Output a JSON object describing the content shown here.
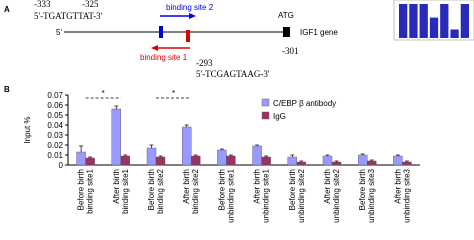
{
  "panel_a": {
    "label": "A",
    "left_pos_1": "-333",
    "left_pos_2": "-325",
    "left_seq": "5'-TGATGTTAT-3'",
    "site2_label": "binding site 2",
    "start_codon": "ATG",
    "five_prime": "5'",
    "gene_label": "IGF1 gene",
    "site1_label": "binding site 1",
    "right_pos_1": "-293",
    "right_pos_2": "-301",
    "right_seq": "5'-TCGAGTAAG-3'"
  },
  "panel_b_label": "B",
  "chart_data": [
    {
      "type": "bar",
      "y_label": "Input %",
      "categories": [
        "Before birth binding site1",
        "After birth binding site1",
        "Before birth binding site2",
        "After birth binding site2",
        "Before birth unbinding site1",
        "After birth unbinding site1",
        "Before birth unbinding site2",
        "After birth unbinding site2",
        "Before birth unbinding site3",
        "After birth unbinding site3"
      ],
      "series": [
        {
          "name": "C/EBP β antibody",
          "color": "#9999ff",
          "values": [
            0.013,
            0.056,
            0.017,
            0.038,
            0.015,
            0.019,
            0.008,
            0.009,
            0.01,
            0.009
          ],
          "errors": [
            0.006,
            0.003,
            0.003,
            0.002,
            0.001,
            0.001,
            0.002,
            0.001,
            0.001,
            0.001
          ]
        },
        {
          "name": "IgG",
          "color": "#993366",
          "values": [
            0.007,
            0.009,
            0.008,
            0.009,
            0.009,
            0.008,
            0.003,
            0.003,
            0.004,
            0.003
          ],
          "errors": [
            0.001,
            0.001,
            0.001,
            0.001,
            0.001,
            0.001,
            0.001,
            0.001,
            0.001,
            0.001
          ]
        }
      ],
      "ylim": [
        0,
        0.07
      ],
      "yticks": [
        0,
        0.01,
        0.02,
        0.03,
        0.04,
        0.05,
        0.06,
        0.07
      ],
      "annotations": [
        {
          "text": "*",
          "between": [
            "Before birth binding site1",
            "After birth binding site1"
          ]
        },
        {
          "text": "*",
          "between": [
            "Before birth binding site2",
            "After birth binding site2"
          ]
        }
      ]
    },
    {
      "type": "bar",
      "color": "#2a2ab8",
      "values": [
        100,
        100,
        100,
        60,
        100,
        25,
        100
      ],
      "ylim": [
        0,
        100
      ]
    }
  ]
}
